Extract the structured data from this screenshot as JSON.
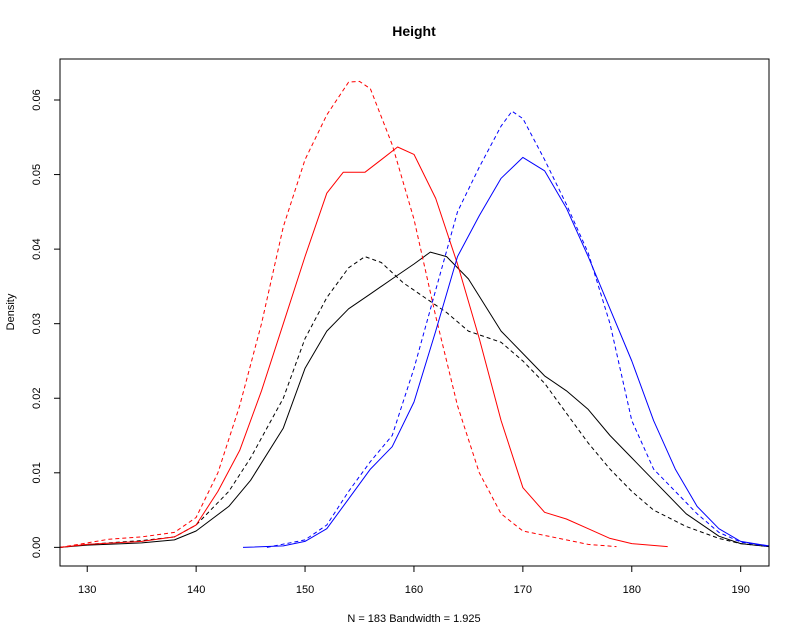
{
  "chart_data": {
    "type": "line",
    "title": "Height",
    "xlabel": "N = 183   Bandwidth = 1.925",
    "ylabel": "Density",
    "xlim": [
      127.5,
      192.6
    ],
    "ylim": [
      -0.0025,
      0.0655
    ],
    "x_ticks": [
      130,
      140,
      150,
      160,
      170,
      180,
      190
    ],
    "y_ticks": [
      0.0,
      0.01,
      0.02,
      0.03,
      0.04,
      0.05,
      0.06
    ],
    "y_tick_labels": [
      "0.00",
      "0.01",
      "0.02",
      "0.03",
      "0.04",
      "0.05",
      "0.06"
    ],
    "grid": false,
    "series": [
      {
        "color": "#000000",
        "dash": "solid",
        "points": [
          [
            127.5,
            0.0
          ],
          [
            130,
            0.0003
          ],
          [
            135,
            0.0006
          ],
          [
            138,
            0.001
          ],
          [
            140,
            0.0022
          ],
          [
            143,
            0.0055
          ],
          [
            145,
            0.009
          ],
          [
            148,
            0.016
          ],
          [
            150,
            0.024
          ],
          [
            152,
            0.029
          ],
          [
            154,
            0.032
          ],
          [
            156,
            0.034
          ],
          [
            158,
            0.036
          ],
          [
            160,
            0.038
          ],
          [
            161.5,
            0.0396
          ],
          [
            163,
            0.039
          ],
          [
            165,
            0.036
          ],
          [
            168,
            0.029
          ],
          [
            170,
            0.026
          ],
          [
            172,
            0.023
          ],
          [
            174,
            0.021
          ],
          [
            176,
            0.0185
          ],
          [
            178,
            0.015
          ],
          [
            180,
            0.012
          ],
          [
            182,
            0.009
          ],
          [
            185,
            0.0045
          ],
          [
            188,
            0.0015
          ],
          [
            190,
            0.0005
          ],
          [
            192.6,
            0.0001
          ]
        ]
      },
      {
        "color": "#000000",
        "dash": "dashed",
        "points": [
          [
            127.5,
            0.0
          ],
          [
            130,
            0.0004
          ],
          [
            135,
            0.0009
          ],
          [
            138,
            0.0014
          ],
          [
            140,
            0.003
          ],
          [
            143,
            0.0075
          ],
          [
            145,
            0.012
          ],
          [
            148,
            0.02
          ],
          [
            150,
            0.028
          ],
          [
            152,
            0.0335
          ],
          [
            154,
            0.0375
          ],
          [
            155.5,
            0.039
          ],
          [
            157,
            0.0382
          ],
          [
            159,
            0.0355
          ],
          [
            161,
            0.0335
          ],
          [
            163,
            0.0315
          ],
          [
            165,
            0.029
          ],
          [
            168,
            0.0275
          ],
          [
            170,
            0.025
          ],
          [
            172,
            0.022
          ],
          [
            174,
            0.018
          ],
          [
            176,
            0.014
          ],
          [
            178,
            0.0105
          ],
          [
            180,
            0.0075
          ],
          [
            182,
            0.005
          ],
          [
            185,
            0.0028
          ],
          [
            188,
            0.0012
          ],
          [
            190,
            0.0005
          ],
          [
            192.6,
            0.0001
          ]
        ]
      },
      {
        "color": "#ff0000",
        "dash": "solid",
        "points": [
          [
            127.5,
            0.0
          ],
          [
            130,
            0.0004
          ],
          [
            135,
            0.0008
          ],
          [
            138,
            0.0014
          ],
          [
            140,
            0.003
          ],
          [
            142,
            0.0075
          ],
          [
            144,
            0.013
          ],
          [
            146,
            0.021
          ],
          [
            148,
            0.03
          ],
          [
            150,
            0.039
          ],
          [
            152,
            0.0475
          ],
          [
            153.5,
            0.0503
          ],
          [
            155.5,
            0.0503
          ],
          [
            157,
            0.052
          ],
          [
            158.5,
            0.0537
          ],
          [
            160,
            0.0527
          ],
          [
            162,
            0.0468
          ],
          [
            164,
            0.038
          ],
          [
            166,
            0.028
          ],
          [
            168,
            0.017
          ],
          [
            170,
            0.008
          ],
          [
            172,
            0.0047
          ],
          [
            174,
            0.0038
          ],
          [
            176,
            0.0025
          ],
          [
            178,
            0.0012
          ],
          [
            180,
            0.0005
          ],
          [
            183.3,
            0.0001
          ]
        ]
      },
      {
        "color": "#ff0000",
        "dash": "dashed",
        "points": [
          [
            127.5,
            0.0
          ],
          [
            130,
            0.0006
          ],
          [
            132,
            0.0011
          ],
          [
            135,
            0.0014
          ],
          [
            138,
            0.002
          ],
          [
            140,
            0.004
          ],
          [
            142,
            0.01
          ],
          [
            144,
            0.019
          ],
          [
            146,
            0.03
          ],
          [
            148,
            0.043
          ],
          [
            150,
            0.052
          ],
          [
            152,
            0.058
          ],
          [
            154,
            0.0624
          ],
          [
            155,
            0.0625
          ],
          [
            156,
            0.0615
          ],
          [
            158,
            0.054
          ],
          [
            160,
            0.044
          ],
          [
            162,
            0.031
          ],
          [
            164,
            0.019
          ],
          [
            166,
            0.01
          ],
          [
            168,
            0.0045
          ],
          [
            170,
            0.0022
          ],
          [
            172,
            0.0016
          ],
          [
            174,
            0.001
          ],
          [
            176,
            0.0004
          ],
          [
            178.6,
            0.0001
          ]
        ]
      },
      {
        "color": "#0000ff",
        "dash": "solid",
        "points": [
          [
            144.3,
            0.0
          ],
          [
            148,
            0.0002
          ],
          [
            150,
            0.0008
          ],
          [
            152,
            0.0025
          ],
          [
            154,
            0.0065
          ],
          [
            156,
            0.0105
          ],
          [
            158,
            0.0135
          ],
          [
            160,
            0.0195
          ],
          [
            162,
            0.029
          ],
          [
            164,
            0.039
          ],
          [
            166,
            0.0445
          ],
          [
            168,
            0.0495
          ],
          [
            170,
            0.0523
          ],
          [
            172,
            0.0505
          ],
          [
            174,
            0.0455
          ],
          [
            176,
            0.039
          ],
          [
            178,
            0.032
          ],
          [
            180,
            0.025
          ],
          [
            182,
            0.017
          ],
          [
            184,
            0.0105
          ],
          [
            186,
            0.0055
          ],
          [
            188,
            0.0025
          ],
          [
            190,
            0.0008
          ],
          [
            192.6,
            0.0002
          ]
        ]
      },
      {
        "color": "#0000ff",
        "dash": "dashed",
        "points": [
          [
            146.5,
            0.0
          ],
          [
            150,
            0.001
          ],
          [
            152,
            0.003
          ],
          [
            154,
            0.0075
          ],
          [
            156,
            0.0115
          ],
          [
            158,
            0.015
          ],
          [
            160,
            0.024
          ],
          [
            162,
            0.0345
          ],
          [
            164,
            0.045
          ],
          [
            166,
            0.051
          ],
          [
            168,
            0.0565
          ],
          [
            169,
            0.0585
          ],
          [
            170,
            0.0575
          ],
          [
            172,
            0.052
          ],
          [
            174,
            0.046
          ],
          [
            176,
            0.0395
          ],
          [
            178,
            0.03
          ],
          [
            180,
            0.017
          ],
          [
            182,
            0.0105
          ],
          [
            184,
            0.0075
          ],
          [
            186,
            0.0045
          ],
          [
            188,
            0.002
          ],
          [
            190,
            0.0007
          ],
          [
            192.6,
            0.0001
          ]
        ]
      }
    ]
  }
}
